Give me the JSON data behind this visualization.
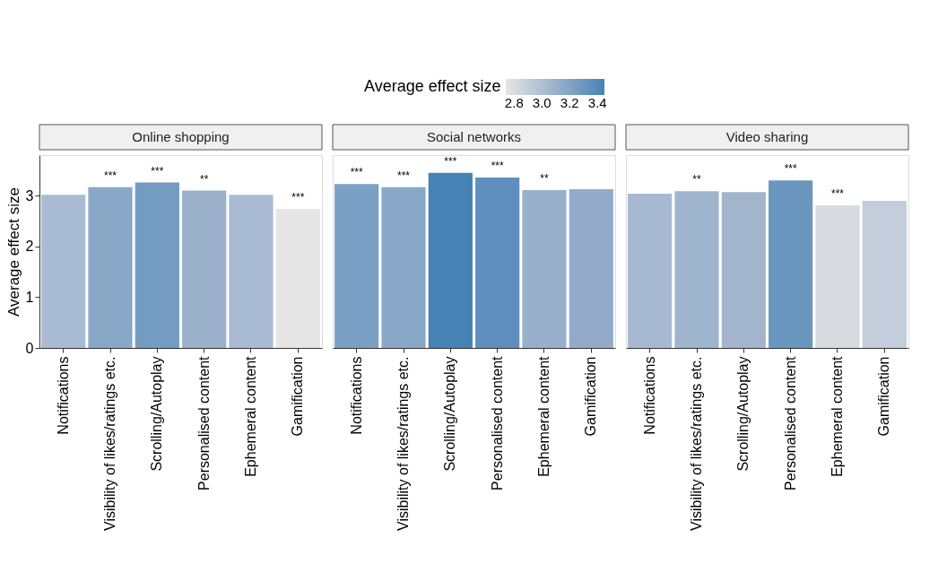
{
  "chart_data": [
    {
      "type": "bar",
      "title": "Online shopping",
      "ylabel": "Average effect size",
      "clabel": "Average effect size",
      "clim": [
        2.74,
        3.45
      ],
      "cticks": [
        {
          "value": 2.8,
          "label": "2.8"
        },
        {
          "value": 3.0,
          "label": "3.0"
        },
        {
          "value": 3.2,
          "label": "3.2"
        },
        {
          "value": 3.4,
          "label": "3.4"
        }
      ],
      "categories": [
        "Notifications",
        "Visibility of likes/ratings etc.",
        "Scrolling/Autoplay",
        "Personalised content",
        "Ephemeral content",
        "Gamification"
      ],
      "values": [
        3.02,
        3.17,
        3.26,
        3.1,
        3.02,
        2.74
      ],
      "colors": [
        "#a9bbd3",
        "#89a8c8",
        "#749bc1",
        "#9ab0cb",
        "#a9bbd3",
        "#e5e5e5"
      ],
      "ylim": [
        0,
        3.8
      ],
      "yticks": [
        0,
        1,
        2,
        3
      ],
      "grid": false,
      "annotations": [
        {
          "text": "***",
          "x": "Visibility of likes/ratings etc.",
          "y": 3.17
        },
        {
          "text": "***",
          "x": "Scrolling/Autoplay",
          "y": 3.26
        },
        {
          "text": "**",
          "x": "Personalised content",
          "y": 3.1
        },
        {
          "text": "***",
          "x": "Gamification",
          "y": 2.74
        }
      ]
    },
    {
      "type": "bar",
      "title": "Social networks",
      "categories": [
        "Notifications",
        "Visibility of likes/ratings etc.",
        "Scrolling/Autoplay",
        "Personalised content",
        "Ephemeral content",
        "Gamification"
      ],
      "values": [
        3.23,
        3.17,
        3.45,
        3.36,
        3.11,
        3.13
      ],
      "colors": [
        "#7aa0c5",
        "#89a8c8",
        "#4682b4",
        "#5e8fbe",
        "#99b0cc",
        "#93aacb"
      ],
      "ylim": [
        0,
        3.8
      ],
      "yticks": [
        0,
        1,
        2,
        3
      ],
      "grid": false,
      "tick_labels": "x",
      "annotations": [
        {
          "text": "***",
          "x": "Notifications",
          "y": 3.23
        },
        {
          "text": "***",
          "x": "Visibility of likes/ratings etc.",
          "y": 3.17
        },
        {
          "text": "***",
          "x": "Scrolling/Autoplay",
          "y": 3.45
        },
        {
          "text": "***",
          "x": "Personalised content",
          "y": 3.36
        },
        {
          "text": "**",
          "x": "Ephemeral content",
          "y": 3.11
        }
      ]
    },
    {
      "type": "bar",
      "title": "Video sharing",
      "categories": [
        "Notifications",
        "Visibility of likes/ratings etc.",
        "Scrolling/Autoplay",
        "Personalised content",
        "Ephemeral content",
        "Gamification"
      ],
      "values": [
        3.04,
        3.09,
        3.07,
        3.3,
        2.81,
        2.9
      ],
      "colors": [
        "#a7b9d2",
        "#9fb4cd",
        "#a3b5cd",
        "#6b97bf",
        "#d7dbe1",
        "#c3cddb"
      ],
      "ylim": [
        0,
        3.8
      ],
      "yticks": [
        0,
        1,
        2,
        3
      ],
      "grid": false,
      "tick_labels": "x",
      "annotations": [
        {
          "text": "**",
          "x": "Visibility of likes/ratings etc.",
          "y": 3.09
        },
        {
          "text": "***",
          "x": "Personalised content",
          "y": 3.3
        },
        {
          "text": "***",
          "x": "Ephemeral content",
          "y": 2.81
        }
      ]
    }
  ]
}
